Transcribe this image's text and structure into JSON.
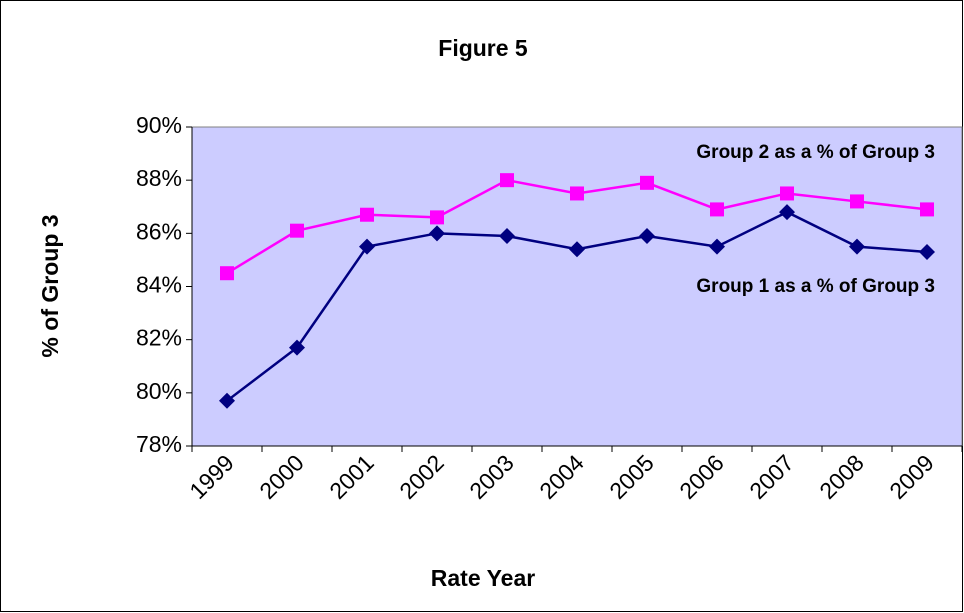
{
  "chart_data": {
    "type": "line",
    "title": "Figure 5",
    "x_label": "Rate Year",
    "y_label": "% of Group 3",
    "categories": [
      "1999",
      "2000",
      "2001",
      "2002",
      "2003",
      "2004",
      "2005",
      "2006",
      "2007",
      "2008",
      "2009"
    ],
    "series": [
      {
        "name": "Group 1 as a % of Group 3",
        "color": "#000080",
        "marker": "diamond",
        "values": [
          79.7,
          81.7,
          85.5,
          86.0,
          85.9,
          85.4,
          85.9,
          85.5,
          86.8,
          85.5,
          85.3
        ]
      },
      {
        "name": "Group 2 as a % of Group 3",
        "color": "#ff00ff",
        "marker": "square",
        "values": [
          84.5,
          86.1,
          86.7,
          86.6,
          88.0,
          87.5,
          87.9,
          86.9,
          87.5,
          87.2,
          86.9
        ]
      }
    ],
    "ylim": [
      78,
      90
    ],
    "yticks": [
      {
        "value": 78,
        "label": "78%"
      },
      {
        "value": 80,
        "label": "80%"
      },
      {
        "value": 82,
        "label": "82%"
      },
      {
        "value": 84,
        "label": "84%"
      },
      {
        "value": 86,
        "label": "86%"
      },
      {
        "value": 88,
        "label": "88%"
      },
      {
        "value": 90,
        "label": "90%"
      }
    ],
    "plot_background": "#ccccff",
    "grid": false
  }
}
